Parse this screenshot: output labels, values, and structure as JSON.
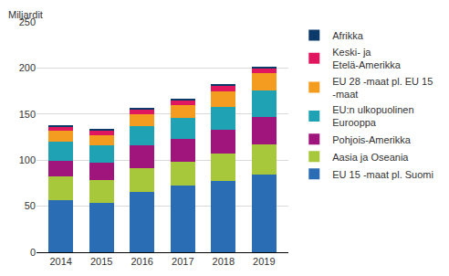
{
  "chart_data": {
    "type": "bar",
    "stacked": true,
    "y_label": "Miljardit",
    "categories": [
      "2014",
      "2015",
      "2016",
      "2017",
      "2018",
      "2019"
    ],
    "series": [
      {
        "name": "EU 15 -maat pl. Suomi",
        "color": "#2a6db5",
        "values": [
          57,
          54,
          65,
          72,
          77,
          84
        ]
      },
      {
        "name": "Aasia ja Oseania",
        "color": "#a8c83c",
        "values": [
          25,
          24,
          26,
          26,
          30,
          33
        ]
      },
      {
        "name": "Pohjois-Amerikka",
        "color": "#a0157c",
        "values": [
          17,
          19,
          25,
          25,
          26,
          30
        ]
      },
      {
        "name": "EU:n ulkopuolinen Eurooppa",
        "color": "#1fa3b4",
        "values": [
          21,
          19,
          21,
          23,
          25,
          29
        ]
      },
      {
        "name": "EU 28 -maat pl. EU 15 -maat",
        "color": "#f39c1f",
        "values": [
          12,
          11,
          13,
          14,
          17,
          18
        ]
      },
      {
        "name": "Keski- ja Etelä-Amerikka",
        "color": "#e0175e",
        "values": [
          4,
          5,
          5,
          5,
          6,
          5
        ]
      },
      {
        "name": "Afrikka",
        "color": "#0c3b6b",
        "values": [
          2,
          2,
          2,
          2,
          2,
          2
        ]
      }
    ],
    "ylim": [
      0,
      250
    ],
    "yticks": [
      0,
      50,
      100,
      150,
      200,
      250
    ],
    "grid": true,
    "legend": "right"
  }
}
